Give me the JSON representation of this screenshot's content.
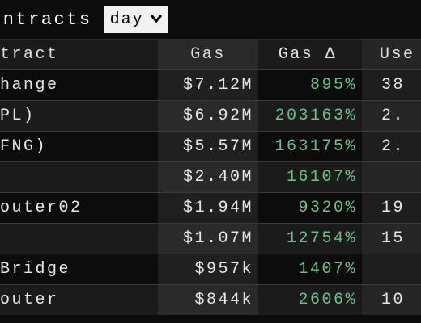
{
  "header": {
    "title": "ontracts",
    "period_select": {
      "value": "day"
    }
  },
  "table": {
    "columns": {
      "name": "tract",
      "gas": "Gas",
      "gas_delta": "Gas Δ",
      "users": "Use"
    },
    "rows": [
      {
        "name": "hange",
        "gas": "$7.12M",
        "gas_delta": "895%",
        "users": "38"
      },
      {
        "name": "PL)",
        "gas": "$6.92M",
        "gas_delta": "203163%",
        "users": "2."
      },
      {
        "name": "FNG)",
        "gas": "$5.57M",
        "gas_delta": "163175%",
        "users": "2."
      },
      {
        "name": "",
        "gas": "$2.40M",
        "gas_delta": "16107%",
        "users": ""
      },
      {
        "name": "outer02",
        "gas": "$1.94M",
        "gas_delta": "9320%",
        "users": "19"
      },
      {
        "name": "",
        "gas": "$1.07M",
        "gas_delta": "12754%",
        "users": "15"
      },
      {
        "name": "Bridge",
        "gas": "$957k",
        "gas_delta": "1407%",
        "users": ""
      },
      {
        "name": "outer",
        "gas": "$844k",
        "gas_delta": "2606%",
        "users": "10"
      }
    ]
  },
  "colors": {
    "positive_delta": "#6fbf8a",
    "background": "#0c0c0c"
  }
}
